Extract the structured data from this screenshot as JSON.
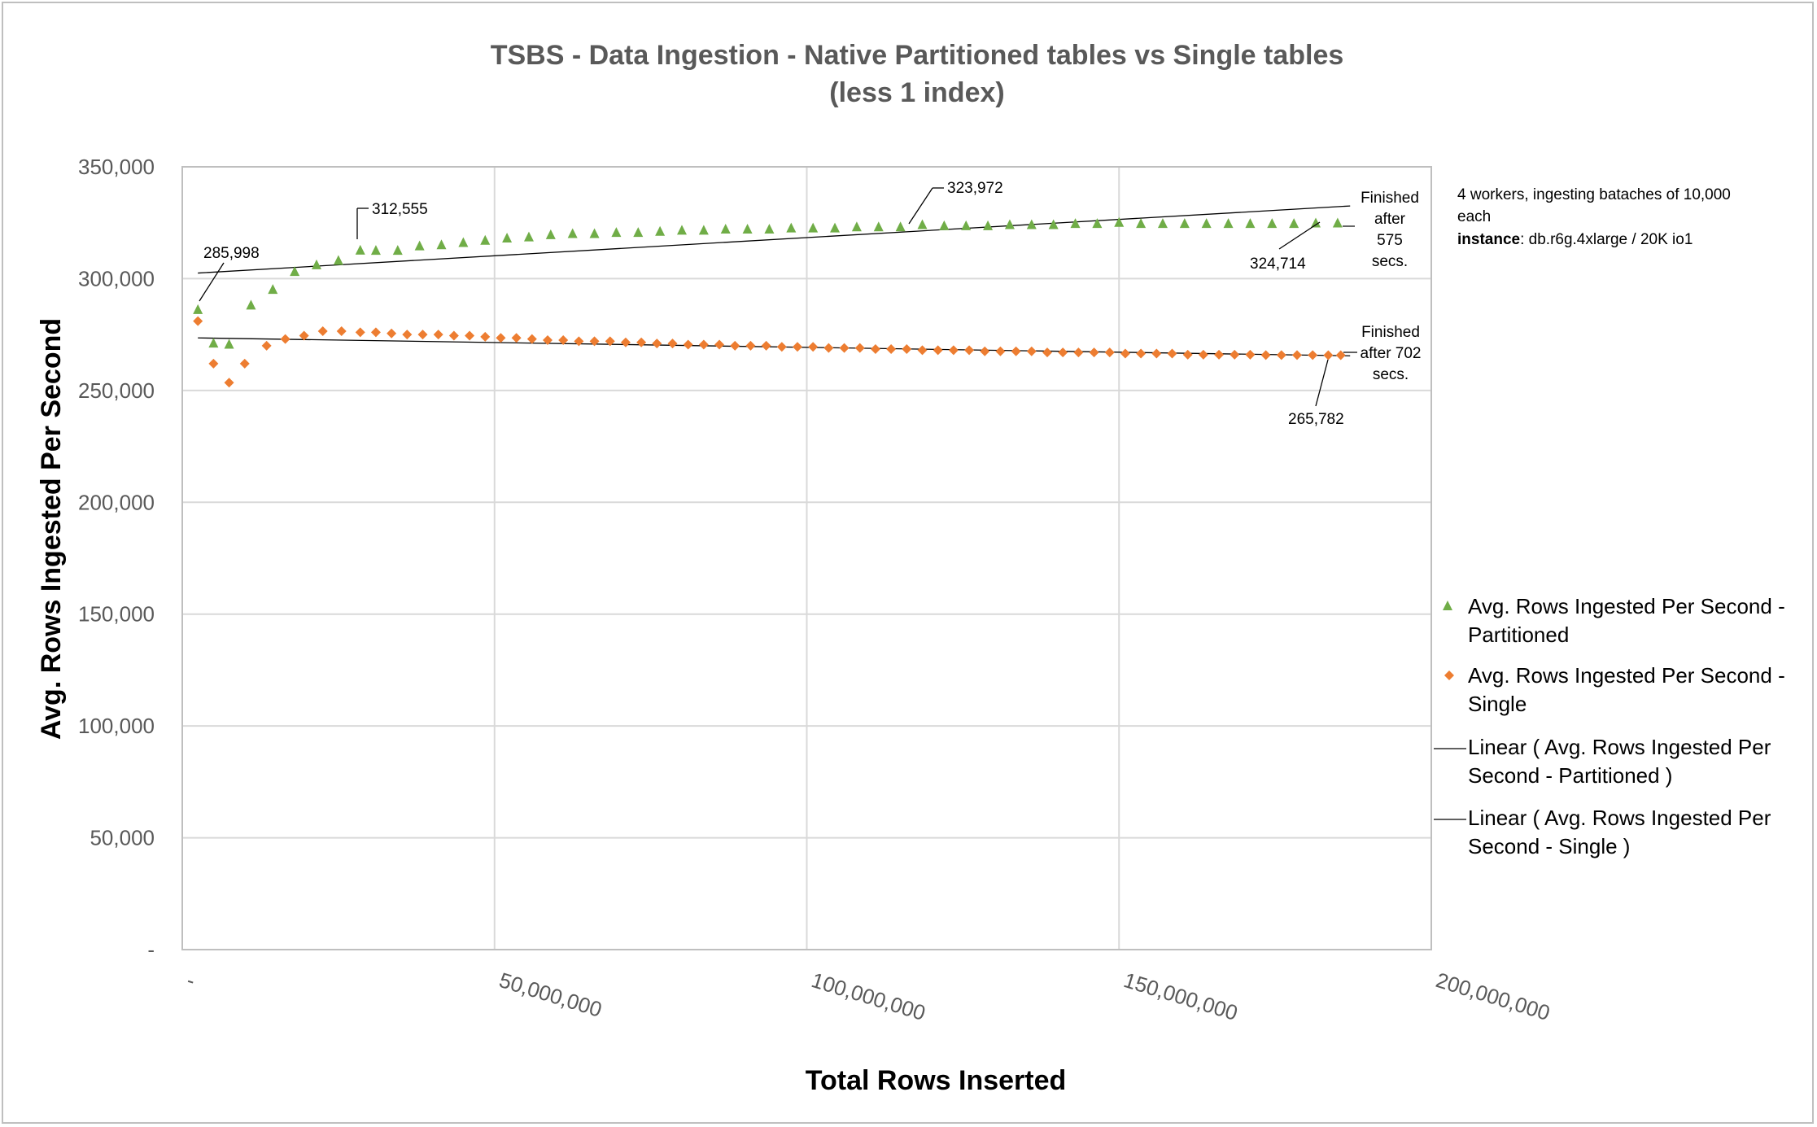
{
  "chart_data": {
    "type": "scatter",
    "title": "TSBS - Data Ingestion - Native Partitioned tables vs Single tables",
    "subtitle": "(less 1 index)",
    "xlabel": "Total Rows Inserted",
    "ylabel": "Avg. Rows Ingested Per Second",
    "xlim": [
      0,
      200000000
    ],
    "ylim": [
      0,
      350000
    ],
    "x_ticks": [
      "-",
      "50,000,000",
      "100,000,000",
      "150,000,000",
      "200,000,000"
    ],
    "y_ticks": [
      "-",
      "50,000",
      "100,000",
      "150,000",
      "200,000",
      "250,000",
      "300,000",
      "350,000"
    ],
    "grid": true,
    "legend_position": "right",
    "colors": {
      "partitioned": "#70ad47",
      "single": "#ed7d31",
      "trend": "#000000"
    },
    "series": [
      {
        "name": "Avg. Rows Ingested Per Second - Partitioned",
        "marker": "triangle",
        "x": [
          2500000,
          5000000,
          7500000,
          11000000,
          14500000,
          18000000,
          21500000,
          25000000,
          28500000,
          31000000,
          34500000,
          38000000,
          41500000,
          45000000,
          48500000,
          52000000,
          55500000,
          59000000,
          62500000,
          66000000,
          69500000,
          73000000,
          76500000,
          80000000,
          83500000,
          87000000,
          90500000,
          94000000,
          97500000,
          101000000,
          104500000,
          108000000,
          111500000,
          115000000,
          118500000,
          122000000,
          125500000,
          129000000,
          132500000,
          136000000,
          139500000,
          143000000,
          146500000,
          150000000,
          153500000,
          157000000,
          160500000,
          164000000,
          167500000,
          171000000,
          174500000,
          178000000,
          181500000,
          185000000
        ],
        "values": [
          285998,
          271000,
          270500,
          288000,
          295000,
          303000,
          306000,
          308000,
          312555,
          312500,
          312500,
          314500,
          315000,
          316000,
          317000,
          318000,
          318500,
          319500,
          320000,
          320000,
          320500,
          320500,
          321000,
          321500,
          321500,
          322000,
          322000,
          322000,
          322500,
          322500,
          322500,
          323000,
          323000,
          323000,
          323972,
          323500,
          323500,
          323500,
          324000,
          324000,
          324000,
          324500,
          324500,
          325000,
          324500,
          324500,
          324500,
          324500,
          324500,
          324500,
          324500,
          324500,
          324714,
          324714
        ]
      },
      {
        "name": "Avg. Rows Ingested Per Second - Single",
        "marker": "diamond",
        "x": [
          2500000,
          5000000,
          7500000,
          10000000,
          13500000,
          16500000,
          19500000,
          22500000,
          25500000,
          28500000,
          31000000,
          33500000,
          36000000,
          38500000,
          41000000,
          43500000,
          46000000,
          48500000,
          51000000,
          53500000,
          56000000,
          58500000,
          61000000,
          63500000,
          66000000,
          68500000,
          71000000,
          73500000,
          76000000,
          78500000,
          81000000,
          83500000,
          86000000,
          88500000,
          91000000,
          93500000,
          96000000,
          98500000,
          101000000,
          103500000,
          106000000,
          108500000,
          111000000,
          113500000,
          116000000,
          118500000,
          121000000,
          123500000,
          126000000,
          128500000,
          131000000,
          133500000,
          136000000,
          138500000,
          141000000,
          143500000,
          146000000,
          148500000,
          151000000,
          153500000,
          156000000,
          158500000,
          161000000,
          163500000,
          166000000,
          168500000,
          171000000,
          173500000,
          176000000,
          178500000,
          181000000,
          183500000,
          185500000
        ],
        "values": [
          281000,
          262000,
          253500,
          262000,
          270000,
          273000,
          274500,
          276500,
          276500,
          276000,
          276000,
          275500,
          275000,
          275000,
          275000,
          274500,
          274500,
          274000,
          273500,
          273500,
          273000,
          272500,
          272500,
          272000,
          272000,
          272000,
          271500,
          271500,
          271000,
          271000,
          270500,
          270500,
          270500,
          270000,
          270000,
          270000,
          269500,
          269500,
          269500,
          269000,
          269000,
          269000,
          268500,
          268500,
          268500,
          268000,
          268000,
          268000,
          268000,
          267500,
          267500,
          267500,
          267500,
          267000,
          267000,
          267000,
          267000,
          267000,
          266500,
          266500,
          266500,
          266500,
          266000,
          266000,
          266000,
          266000,
          266000,
          265800,
          265800,
          265800,
          265800,
          265782,
          265782
        ]
      }
    ],
    "trendlines": [
      {
        "name": "Linear ( Avg. Rows Ingested Per Second - Partitioned )",
        "x": [
          2500000,
          187000000
        ],
        "values": [
          302500,
          332500
        ]
      },
      {
        "name": "Linear ( Avg. Rows Ingested Per Second - Single )",
        "x": [
          2500000,
          187000000
        ],
        "values": [
          273500,
          265500
        ]
      }
    ],
    "annotations": [
      {
        "text": "285,998",
        "x": 2500000,
        "y": 285998
      },
      {
        "text": "312,555",
        "x": 28500000,
        "y": 312555
      },
      {
        "text": "323,972",
        "x": 118500000,
        "y": 323972
      },
      {
        "text": "324,714",
        "x": 181500000,
        "y": 324714
      },
      {
        "text": "265,782",
        "x": 183500000,
        "y": 265782
      }
    ],
    "notes": [
      {
        "lines": [
          "Finished",
          "after",
          "575",
          "secs."
        ]
      },
      {
        "lines": [
          "Finished",
          "after 702",
          "secs."
        ]
      }
    ],
    "info_box": {
      "line1": "4 workers, ingesting bataches of 10,000",
      "line2": "each",
      "line3_bold": "instance",
      "line3_rest": ": db.r6g.4xlarge / 20K io1"
    },
    "legend": [
      {
        "line1": " Avg. Rows Ingested Per Second -",
        "line2": "Partitioned"
      },
      {
        "line1": " Avg. Rows Ingested Per Second -",
        "line2": "Single"
      },
      {
        "line1": "Linear ( Avg. Rows Ingested Per",
        "line2": "Second - Partitioned  )"
      },
      {
        "line1": "Linear ( Avg. Rows Ingested Per",
        "line2": "Second - Single )"
      }
    ]
  }
}
